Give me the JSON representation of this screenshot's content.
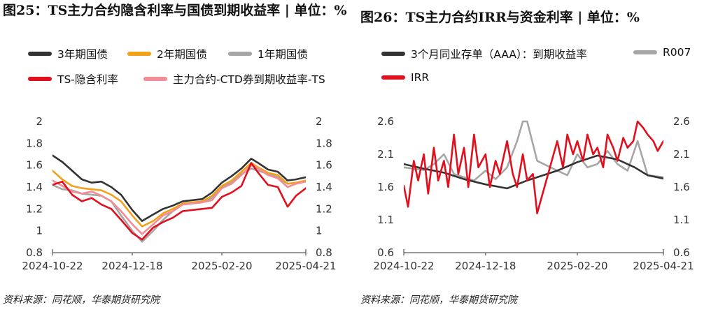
{
  "left": {
    "title": "图25：TS主力合约隐含利率与国债到期收益率 | 单位：%",
    "source": "资料来源：同花顺，华泰期货研究院",
    "legend": [
      {
        "label": "3年期国债",
        "color": "#333333"
      },
      {
        "label": "2年期国债",
        "color": "#f2a21a"
      },
      {
        "label": "1年期国债",
        "color": "#a6a6a6"
      },
      {
        "label": "TS-隐含利率",
        "color": "#e0101e"
      },
      {
        "label": "主力合约-CTD券到期收益率-TS",
        "color": "#f28c96"
      }
    ]
  },
  "right": {
    "title": "图26：TS主力合约IRR与资金利率 | 单位：%",
    "source": "资料来源：同花顺，华泰期货研究院",
    "legend": [
      {
        "label": "3个月同业存单（AAA）：到期收益率",
        "color": "#333333"
      },
      {
        "label": "R007",
        "color": "#a6a6a6"
      },
      {
        "label": "IRR",
        "color": "#e0101e"
      }
    ]
  },
  "chart_data": [
    {
      "type": "line",
      "title": "图25：TS主力合约隐含利率与国债到期收益率 | 单位：%",
      "x_ticks": [
        "2024-10-22",
        "2024-12-18",
        "2025-02-20",
        "2025-04-21"
      ],
      "x_range": [
        "2024-10-22",
        "2025-04-21"
      ],
      "ylim": [
        0.8,
        2.0
      ],
      "y_ticks": [
        "0.8",
        "1",
        "1.2",
        "1.4",
        "1.6",
        "1.8",
        "2"
      ],
      "dual_axis_same_scale": true,
      "grid": false,
      "legend_position": "top",
      "series": [
        {
          "name": "3年期国债",
          "color": "#333333",
          "x": [
            "2024-10-22",
            "2024-10-29",
            "2024-11-05",
            "2024-11-12",
            "2024-11-19",
            "2024-11-26",
            "2024-12-03",
            "2024-12-10",
            "2024-12-18",
            "2024-12-25",
            "2025-01-02",
            "2025-01-09",
            "2025-01-16",
            "2025-01-23",
            "2025-02-06",
            "2025-02-13",
            "2025-02-20",
            "2025-02-27",
            "2025-03-06",
            "2025-03-13",
            "2025-03-18",
            "2025-03-25",
            "2025-04-01",
            "2025-04-08",
            "2025-04-14",
            "2025-04-21"
          ],
          "values": [
            1.69,
            1.63,
            1.55,
            1.47,
            1.44,
            1.45,
            1.4,
            1.33,
            1.19,
            1.09,
            1.15,
            1.2,
            1.23,
            1.27,
            1.29,
            1.35,
            1.44,
            1.5,
            1.57,
            1.66,
            1.62,
            1.56,
            1.54,
            1.46,
            1.47,
            1.49
          ]
        },
        {
          "name": "2年期国债",
          "color": "#f2a21a",
          "x": [
            "2024-10-22",
            "2024-10-29",
            "2024-11-05",
            "2024-11-12",
            "2024-11-19",
            "2024-11-26",
            "2024-12-03",
            "2024-12-10",
            "2024-12-18",
            "2024-12-25",
            "2025-01-02",
            "2025-01-09",
            "2025-01-16",
            "2025-01-23",
            "2025-02-06",
            "2025-02-13",
            "2025-02-20",
            "2025-02-27",
            "2025-03-06",
            "2025-03-13",
            "2025-03-18",
            "2025-03-25",
            "2025-04-01",
            "2025-04-08",
            "2025-04-14",
            "2025-04-21"
          ],
          "values": [
            1.55,
            1.47,
            1.41,
            1.39,
            1.38,
            1.37,
            1.33,
            1.27,
            1.14,
            1.04,
            1.09,
            1.16,
            1.2,
            1.25,
            1.27,
            1.32,
            1.41,
            1.46,
            1.54,
            1.62,
            1.58,
            1.53,
            1.51,
            1.43,
            1.44,
            1.46
          ]
        },
        {
          "name": "1年期国债",
          "color": "#a6a6a6",
          "x": [
            "2024-10-22",
            "2024-10-29",
            "2024-11-05",
            "2024-11-12",
            "2024-11-19",
            "2024-11-26",
            "2024-12-03",
            "2024-12-10",
            "2024-12-18",
            "2024-12-25",
            "2025-01-02",
            "2025-01-09",
            "2025-01-16",
            "2025-01-23",
            "2025-02-06",
            "2025-02-13",
            "2025-02-20",
            "2025-02-27",
            "2025-03-06",
            "2025-03-13",
            "2025-03-18",
            "2025-03-25",
            "2025-04-01",
            "2025-04-08",
            "2025-04-14",
            "2025-04-21"
          ],
          "values": [
            1.42,
            1.38,
            1.37,
            1.34,
            1.33,
            1.32,
            1.27,
            1.14,
            1.0,
            0.9,
            1.0,
            1.1,
            1.18,
            1.24,
            1.26,
            1.3,
            1.4,
            1.45,
            1.52,
            1.57,
            1.55,
            1.52,
            1.49,
            1.43,
            1.44,
            1.45
          ]
        },
        {
          "name": "TS-隐含利率",
          "color": "#e0101e",
          "x": [
            "2024-10-22",
            "2024-10-29",
            "2024-11-05",
            "2024-11-12",
            "2024-11-19",
            "2024-11-26",
            "2024-12-03",
            "2024-12-10",
            "2024-12-18",
            "2024-12-25",
            "2025-01-02",
            "2025-01-09",
            "2025-01-16",
            "2025-01-23",
            "2025-02-06",
            "2025-02-13",
            "2025-02-20",
            "2025-02-27",
            "2025-03-06",
            "2025-03-13",
            "2025-03-18",
            "2025-03-25",
            "2025-04-01",
            "2025-04-08",
            "2025-04-14",
            "2025-04-21"
          ],
          "values": [
            1.42,
            1.45,
            1.33,
            1.27,
            1.3,
            1.24,
            1.2,
            1.1,
            0.98,
            0.92,
            1.03,
            1.08,
            1.12,
            1.18,
            1.2,
            1.21,
            1.31,
            1.35,
            1.41,
            1.62,
            1.53,
            1.42,
            1.4,
            1.22,
            1.32,
            1.39
          ]
        },
        {
          "name": "主力合约-CTD券到期收益率-TS",
          "color": "#f28c96",
          "x": [
            "2024-10-22",
            "2024-10-29",
            "2024-11-05",
            "2024-11-12",
            "2024-11-19",
            "2024-11-26",
            "2024-12-03",
            "2024-12-10",
            "2024-12-18",
            "2024-12-25",
            "2025-01-02",
            "2025-01-09",
            "2025-01-16",
            "2025-01-23",
            "2025-02-06",
            "2025-02-13",
            "2025-02-20",
            "2025-02-27",
            "2025-03-06",
            "2025-03-13",
            "2025-03-18",
            "2025-03-25",
            "2025-04-01",
            "2025-04-08",
            "2025-04-14",
            "2025-04-21"
          ],
          "values": [
            1.46,
            1.41,
            1.36,
            1.34,
            1.36,
            1.32,
            1.27,
            1.18,
            1.06,
            0.97,
            1.06,
            1.14,
            1.18,
            1.24,
            1.26,
            1.28,
            1.39,
            1.43,
            1.51,
            1.6,
            1.57,
            1.51,
            1.48,
            1.4,
            1.43,
            1.45
          ]
        }
      ]
    },
    {
      "type": "line",
      "title": "图26：TS主力合约IRR与资金利率 | 单位：%",
      "x_ticks": [
        "2024-10-22",
        "2024-12-18",
        "2025-02-20",
        "2025-04-21"
      ],
      "x_range": [
        "2024-10-22",
        "2025-04-21"
      ],
      "ylim": [
        0.6,
        2.6
      ],
      "y_ticks": [
        "0.6",
        "1.1",
        "1.6",
        "2.1",
        "2.6"
      ],
      "dual_axis_same_scale": true,
      "grid": false,
      "legend_position": "top",
      "series": [
        {
          "name": "3个月同业存单（AAA）：到期收益率",
          "color": "#333333",
          "x": [
            "2024-10-22",
            "2024-11-05",
            "2024-11-19",
            "2024-12-03",
            "2024-12-18",
            "2025-01-02",
            "2025-01-16",
            "2025-02-06",
            "2025-02-20",
            "2025-03-06",
            "2025-03-20",
            "2025-04-01",
            "2025-04-10",
            "2025-04-21"
          ],
          "values": [
            1.95,
            1.88,
            1.82,
            1.72,
            1.64,
            1.58,
            1.7,
            1.85,
            1.98,
            2.08,
            2.02,
            1.9,
            1.78,
            1.73
          ]
        },
        {
          "name": "R007",
          "color": "#a6a6a6",
          "x": [
            "2024-10-22",
            "2024-10-29",
            "2024-11-05",
            "2024-11-12",
            "2024-11-19",
            "2024-11-26",
            "2024-12-03",
            "2024-12-10",
            "2024-12-18",
            "2024-12-25",
            "2025-01-02",
            "2025-01-09",
            "2025-01-13",
            "2025-01-16",
            "2025-01-23",
            "2025-02-06",
            "2025-02-13",
            "2025-02-20",
            "2025-02-27",
            "2025-03-06",
            "2025-03-13",
            "2025-03-20",
            "2025-03-27",
            "2025-04-03",
            "2025-04-10",
            "2025-04-21"
          ],
          "values": [
            1.9,
            1.88,
            1.86,
            1.95,
            2.1,
            1.8,
            1.75,
            1.7,
            1.85,
            1.72,
            1.9,
            2.3,
            2.6,
            2.6,
            2.0,
            1.85,
            1.78,
            2.1,
            1.9,
            1.95,
            2.15,
            1.95,
            1.85,
            2.3,
            1.78,
            1.75
          ]
        },
        {
          "name": "IRR",
          "color": "#e0101e",
          "x": [
            "2024-10-22",
            "2024-10-25",
            "2024-10-29",
            "2024-11-01",
            "2024-11-05",
            "2024-11-08",
            "2024-11-12",
            "2024-11-15",
            "2024-11-19",
            "2024-11-22",
            "2024-11-26",
            "2024-11-29",
            "2024-12-03",
            "2024-12-06",
            "2024-12-10",
            "2024-12-13",
            "2024-12-18",
            "2024-12-21",
            "2024-12-25",
            "2024-12-28",
            "2025-01-02",
            "2025-01-06",
            "2025-01-09",
            "2025-01-13",
            "2025-01-16",
            "2025-01-20",
            "2025-01-23",
            "2025-02-06",
            "2025-02-10",
            "2025-02-13",
            "2025-02-17",
            "2025-02-20",
            "2025-02-24",
            "2025-02-27",
            "2025-03-03",
            "2025-03-06",
            "2025-03-10",
            "2025-03-13",
            "2025-03-17",
            "2025-03-20",
            "2025-03-24",
            "2025-03-27",
            "2025-03-31",
            "2025-04-03",
            "2025-04-07",
            "2025-04-10",
            "2025-04-14",
            "2025-04-17",
            "2025-04-21"
          ],
          "values": [
            1.62,
            1.3,
            2.0,
            1.7,
            2.1,
            1.5,
            2.2,
            1.7,
            2.0,
            1.6,
            2.4,
            1.8,
            2.2,
            1.6,
            2.4,
            1.9,
            2.1,
            1.6,
            2.0,
            1.8,
            2.3,
            1.8,
            1.6,
            2.1,
            1.7,
            1.8,
            1.2,
            2.3,
            1.9,
            2.4,
            2.1,
            2.3,
            2.0,
            2.4,
            2.1,
            2.2,
            1.9,
            2.4,
            2.2,
            2.0,
            2.35,
            2.2,
            2.3,
            2.6,
            2.5,
            2.4,
            2.3,
            2.15,
            2.3
          ]
        }
      ]
    }
  ]
}
